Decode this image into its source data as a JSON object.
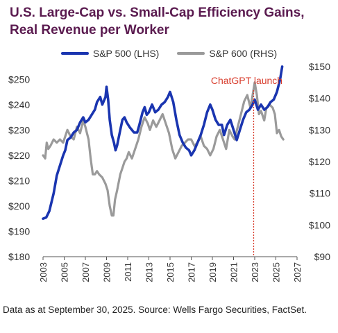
{
  "title": {
    "line1": "U.S. Large-Cap vs. Small-Cap Efficiency Gains,",
    "line2": "Real Revenue per Worker"
  },
  "footer": {
    "note": "Data as at September 30, 2025. Source: Wells Fargo Securities, FactSet."
  },
  "colors": {
    "sp500": "#1a35b0",
    "sp600": "#9a9a9a",
    "annotation": "#d83b2b",
    "title": "#5a1a4f"
  },
  "chart_data": {
    "type": "line",
    "title": "U.S. Large-Cap vs. Small-Cap Efficiency Gains, Real Revenue per Worker",
    "legend_position": "top",
    "grid": false,
    "x_ticks": [
      2003,
      2005,
      2007,
      2009,
      2011,
      2013,
      2015,
      2017,
      2019,
      2021,
      2023,
      2025,
      2027
    ],
    "xlim": [
      2003,
      2027
    ],
    "y_left": {
      "ylim": [
        180,
        255
      ],
      "ticks": [
        180,
        190,
        200,
        210,
        220,
        230,
        240,
        250
      ],
      "tick_labels": [
        "$180",
        "$190",
        "$200",
        "$210",
        "$220",
        "$230",
        "$240",
        "$250"
      ]
    },
    "y_right": {
      "ylim": [
        90,
        150
      ],
      "ticks": [
        90,
        100,
        110,
        120,
        130,
        140,
        150
      ],
      "tick_labels": [
        "$90",
        "$100",
        "$110",
        "$120",
        "$130",
        "$140",
        "$150"
      ]
    },
    "annotations": [
      {
        "text": "ChatGPT launch",
        "x": 2022.9,
        "style": "dotted-vertical-line"
      }
    ],
    "series": [
      {
        "name": "S&P 500 (LHS)",
        "axis": "left",
        "points": [
          [
            2003.0,
            195
          ],
          [
            2003.3,
            195.5
          ],
          [
            2003.6,
            198
          ],
          [
            2004.0,
            205
          ],
          [
            2004.3,
            212
          ],
          [
            2004.6,
            216
          ],
          [
            2004.9,
            220
          ],
          [
            2005.1,
            222
          ],
          [
            2005.3,
            226
          ],
          [
            2005.6,
            227
          ],
          [
            2005.9,
            229
          ],
          [
            2006.2,
            230
          ],
          [
            2006.5,
            233
          ],
          [
            2006.8,
            235
          ],
          [
            2007.0,
            233
          ],
          [
            2007.3,
            234
          ],
          [
            2007.6,
            236
          ],
          [
            2007.9,
            238
          ],
          [
            2008.1,
            241
          ],
          [
            2008.4,
            243
          ],
          [
            2008.6,
            240
          ],
          [
            2008.9,
            243
          ],
          [
            2009.0,
            247
          ],
          [
            2009.15,
            242
          ],
          [
            2009.3,
            234
          ],
          [
            2009.5,
            228
          ],
          [
            2009.7,
            225
          ],
          [
            2009.85,
            222
          ],
          [
            2010.0,
            224
          ],
          [
            2010.3,
            230
          ],
          [
            2010.5,
            234
          ],
          [
            2010.7,
            235
          ],
          [
            2010.9,
            233
          ],
          [
            2011.2,
            231
          ],
          [
            2011.6,
            229
          ],
          [
            2011.9,
            229
          ],
          [
            2012.1,
            232
          ],
          [
            2012.4,
            237
          ],
          [
            2012.6,
            239
          ],
          [
            2012.8,
            236
          ],
          [
            2013.0,
            237
          ],
          [
            2013.3,
            240
          ],
          [
            2013.6,
            237
          ],
          [
            2013.9,
            238
          ],
          [
            2014.2,
            240
          ],
          [
            2014.5,
            241
          ],
          [
            2014.8,
            243
          ],
          [
            2015.0,
            245
          ],
          [
            2015.3,
            241
          ],
          [
            2015.6,
            234
          ],
          [
            2015.9,
            228
          ],
          [
            2016.2,
            225
          ],
          [
            2016.5,
            223
          ],
          [
            2016.8,
            222
          ],
          [
            2017.0,
            220
          ],
          [
            2017.3,
            222
          ],
          [
            2017.6,
            225
          ],
          [
            2017.9,
            228
          ],
          [
            2018.2,
            232
          ],
          [
            2018.5,
            237
          ],
          [
            2018.8,
            240
          ],
          [
            2019.0,
            238
          ],
          [
            2019.3,
            234
          ],
          [
            2019.6,
            232
          ],
          [
            2019.9,
            232
          ],
          [
            2020.1,
            228
          ],
          [
            2020.4,
            232
          ],
          [
            2020.7,
            234
          ],
          [
            2021.0,
            230
          ],
          [
            2021.3,
            226
          ],
          [
            2021.6,
            230
          ],
          [
            2021.9,
            234
          ],
          [
            2022.2,
            237
          ],
          [
            2022.5,
            238
          ],
          [
            2022.8,
            240
          ],
          [
            2023.0,
            242
          ],
          [
            2023.3,
            238
          ],
          [
            2023.6,
            240
          ],
          [
            2023.9,
            238
          ],
          [
            2024.2,
            239
          ],
          [
            2024.5,
            241
          ],
          [
            2024.8,
            242
          ],
          [
            2025.1,
            245
          ],
          [
            2025.4,
            250
          ],
          [
            2025.6,
            255
          ]
        ]
      },
      {
        "name": "S&P 600 (RHS)",
        "axis": "right",
        "points": [
          [
            2003.0,
            122
          ],
          [
            2003.2,
            121
          ],
          [
            2003.35,
            126
          ],
          [
            2003.5,
            124
          ],
          [
            2003.7,
            125
          ],
          [
            2004.0,
            127
          ],
          [
            2004.3,
            126
          ],
          [
            2004.6,
            127
          ],
          [
            2004.9,
            126
          ],
          [
            2005.1,
            128
          ],
          [
            2005.3,
            130
          ],
          [
            2005.6,
            128
          ],
          [
            2005.9,
            127
          ],
          [
            2006.2,
            131
          ],
          [
            2006.5,
            129
          ],
          [
            2006.8,
            133
          ],
          [
            2007.0,
            131
          ],
          [
            2007.3,
            127
          ],
          [
            2007.5,
            121
          ],
          [
            2007.7,
            116
          ],
          [
            2007.9,
            116
          ],
          [
            2008.1,
            117
          ],
          [
            2008.3,
            116
          ],
          [
            2008.6,
            115
          ],
          [
            2008.9,
            113
          ],
          [
            2009.1,
            111
          ],
          [
            2009.3,
            106
          ],
          [
            2009.5,
            103
          ],
          [
            2009.65,
            103
          ],
          [
            2009.8,
            108
          ],
          [
            2010.0,
            111
          ],
          [
            2010.3,
            116
          ],
          [
            2010.5,
            118
          ],
          [
            2010.7,
            120
          ],
          [
            2010.9,
            121
          ],
          [
            2011.1,
            123
          ],
          [
            2011.4,
            121
          ],
          [
            2011.7,
            124
          ],
          [
            2012.0,
            127
          ],
          [
            2012.3,
            131
          ],
          [
            2012.6,
            134
          ],
          [
            2012.9,
            132
          ],
          [
            2013.1,
            130
          ],
          [
            2013.4,
            133
          ],
          [
            2013.7,
            131
          ],
          [
            2014.0,
            133
          ],
          [
            2014.3,
            135
          ],
          [
            2014.6,
            132
          ],
          [
            2014.9,
            129
          ],
          [
            2015.2,
            124
          ],
          [
            2015.5,
            121
          ],
          [
            2015.8,
            123
          ],
          [
            2016.1,
            125
          ],
          [
            2016.4,
            126
          ],
          [
            2016.7,
            127
          ],
          [
            2017.0,
            127
          ],
          [
            2017.3,
            125
          ],
          [
            2017.6,
            126
          ],
          [
            2017.9,
            128
          ],
          [
            2018.2,
            125
          ],
          [
            2018.5,
            124
          ],
          [
            2018.8,
            122
          ],
          [
            2019.1,
            124
          ],
          [
            2019.4,
            128
          ],
          [
            2019.7,
            130
          ],
          [
            2020.0,
            127
          ],
          [
            2020.3,
            124
          ],
          [
            2020.6,
            130
          ],
          [
            2020.9,
            128
          ],
          [
            2021.1,
            127
          ],
          [
            2021.4,
            131
          ],
          [
            2021.7,
            135
          ],
          [
            2022.0,
            139
          ],
          [
            2022.3,
            141
          ],
          [
            2022.6,
            137
          ],
          [
            2022.9,
            143
          ],
          [
            2023.0,
            145
          ],
          [
            2023.2,
            141
          ],
          [
            2023.4,
            135
          ],
          [
            2023.6,
            136
          ],
          [
            2023.9,
            133
          ],
          [
            2024.1,
            137
          ],
          [
            2024.4,
            138
          ],
          [
            2024.7,
            137
          ],
          [
            2024.9,
            135
          ],
          [
            2025.1,
            129
          ],
          [
            2025.3,
            130
          ],
          [
            2025.5,
            128
          ],
          [
            2025.7,
            127
          ]
        ]
      }
    ]
  }
}
